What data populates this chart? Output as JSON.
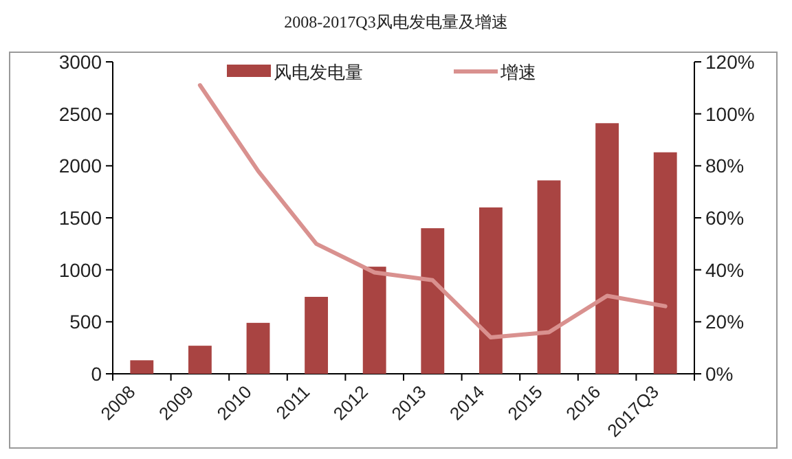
{
  "chart_data": {
    "type": "bar",
    "title": "2008-2017Q3风电发电量及增速",
    "categories": [
      "2008",
      "2009",
      "2010",
      "2011",
      "2012",
      "2013",
      "2014",
      "2015",
      "2016",
      "2017Q3"
    ],
    "series": [
      {
        "name": "风电发电量",
        "color": "#a94442",
        "values": [
          130,
          270,
          490,
          740,
          1030,
          1400,
          1600,
          1860,
          2410,
          2130
        ]
      },
      {
        "name": "增速",
        "type": "line",
        "axis": "y2",
        "color": "#d9918f",
        "values": [
          null,
          111,
          78,
          50,
          39,
          36,
          14,
          16,
          30,
          26
        ]
      }
    ],
    "ylim": [
      0,
      3000
    ],
    "yticks": [
      0,
      500,
      1000,
      1500,
      2000,
      2500,
      3000
    ],
    "y2lim": [
      0,
      120
    ],
    "y2ticks": [
      {
        "value": 0,
        "label": "0%"
      },
      {
        "value": 20,
        "label": "20%"
      },
      {
        "value": 40,
        "label": "40%"
      },
      {
        "value": 60,
        "label": "60%"
      },
      {
        "value": 80,
        "label": "80%"
      },
      {
        "value": 100,
        "label": "100%"
      },
      {
        "value": 120,
        "label": "120%"
      }
    ],
    "grid": false,
    "legend": "top"
  }
}
